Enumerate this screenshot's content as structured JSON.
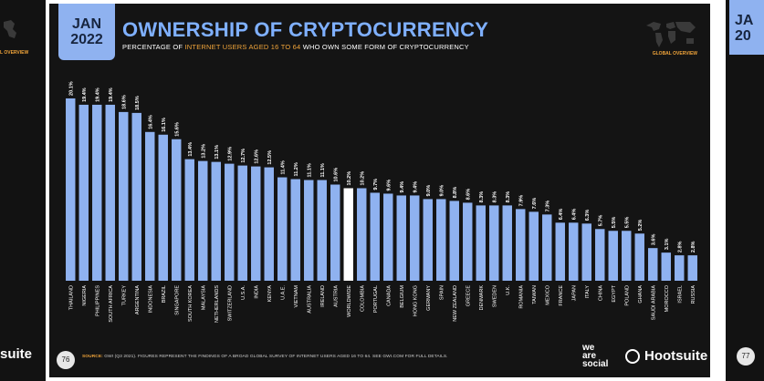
{
  "slide": {
    "date_line1": "JAN",
    "date_line2": "2022",
    "title": "OWNERSHIP OF CRYPTOCURRENCY",
    "subtitle_part1": "PERCENTAGE OF ",
    "subtitle_highlight": "INTERNET USERS AGED 16 TO 64",
    "subtitle_part2": " WHO OWN SOME FORM OF CRYPTOCURRENCY",
    "overview_label": "GLOBAL OVERVIEW",
    "source_label": "SOURCE:",
    "source_text": "GWI (Q3 2021). FIGURES REPRESENT THE FINDINGS OF A BROAD GLOBAL SURVEY OF INTERNET USERS AGED 16 TO 64. SEE GWI.COM FOR FULL DETAILS.",
    "page_number": "76",
    "brand_was_1": "we",
    "brand_was_2": "are",
    "brand_was_3": "social",
    "brand_hootsuite": "Hootsuite"
  },
  "neighbors": {
    "left_brand": "suite",
    "left_overview": "L OVERVIEW",
    "right_date1": "JA",
    "right_date2": "20",
    "right_page": "77"
  },
  "colors": {
    "bar": "#8fb2f0",
    "highlight_bar": "#ffffff",
    "accent": "#f0a43a",
    "title": "#7fb0ff",
    "background": "#141414"
  },
  "chart_data": {
    "type": "bar",
    "title": "OWNERSHIP OF CRYPTOCURRENCY",
    "categories": [
      "THAILAND",
      "NIGERIA",
      "PHILIPPINES",
      "SOUTH AFRICA",
      "TURKEY",
      "ARGENTINA",
      "INDONESIA",
      "BRAZIL",
      "SINGAPORE",
      "SOUTH KOREA",
      "MALAYSIA",
      "NETHERLANDS",
      "SWITZERLAND",
      "U.S.A.",
      "INDIA",
      "KENYA",
      "U.A.E.",
      "VIETNAM",
      "AUSTRALIA",
      "IRELAND",
      "AUSTRIA",
      "WORLDWIDE",
      "COLOMBIA",
      "PORTUGAL",
      "CANADA",
      "BELGIUM",
      "HONG KONG",
      "GERMANY",
      "SPAIN",
      "NEW ZEALAND",
      "GREECE",
      "DENMARK",
      "SWEDEN",
      "U.K.",
      "ROMANIA",
      "TAIWAN",
      "MEXICO",
      "FRANCE",
      "JAPAN",
      "ITALY",
      "CHINA",
      "EGYPT",
      "POLAND",
      "GHANA",
      "SAUDI ARABIA",
      "MOROCCO",
      "ISRAEL",
      "RUSSIA"
    ],
    "values": [
      20.1,
      19.4,
      19.4,
      19.4,
      18.6,
      18.5,
      16.4,
      16.1,
      15.6,
      13.4,
      13.2,
      13.1,
      12.9,
      12.7,
      12.6,
      12.5,
      11.4,
      11.2,
      11.1,
      11.1,
      10.6,
      10.2,
      10.2,
      9.7,
      9.6,
      9.4,
      9.4,
      9.0,
      9.0,
      8.8,
      8.6,
      8.3,
      8.3,
      8.3,
      7.9,
      7.6,
      7.3,
      6.4,
      6.4,
      6.3,
      5.7,
      5.5,
      5.5,
      5.2,
      3.6,
      3.1,
      2.8,
      2.8
    ],
    "value_labels": [
      "20.1%",
      "19.4%",
      "19.4%",
      "19.4%",
      "18.6%",
      "18.5%",
      "16.4%",
      "16.1%",
      "15.6%",
      "13.4%",
      "13.2%",
      "13.1%",
      "12.9%",
      "12.7%",
      "12.6%",
      "12.5%",
      "11.4%",
      "11.2%",
      "11.1%",
      "11.1%",
      "10.6%",
      "10.2%",
      "10.2%",
      "9.7%",
      "9.6%",
      "9.4%",
      "9.4%",
      "9.0%",
      "9.0%",
      "8.8%",
      "8.6%",
      "8.3%",
      "8.3%",
      "8.3%",
      "7.9%",
      "7.6%",
      "7.3%",
      "6.4%",
      "6.4%",
      "6.3%",
      "5.7%",
      "5.5%",
      "5.5%",
      "5.2%",
      "3.6%",
      "3.1%",
      "2.8%",
      "2.8%"
    ],
    "highlight_category": "WORLDWIDE",
    "ylim": [
      0,
      21
    ],
    "grid": false
  }
}
